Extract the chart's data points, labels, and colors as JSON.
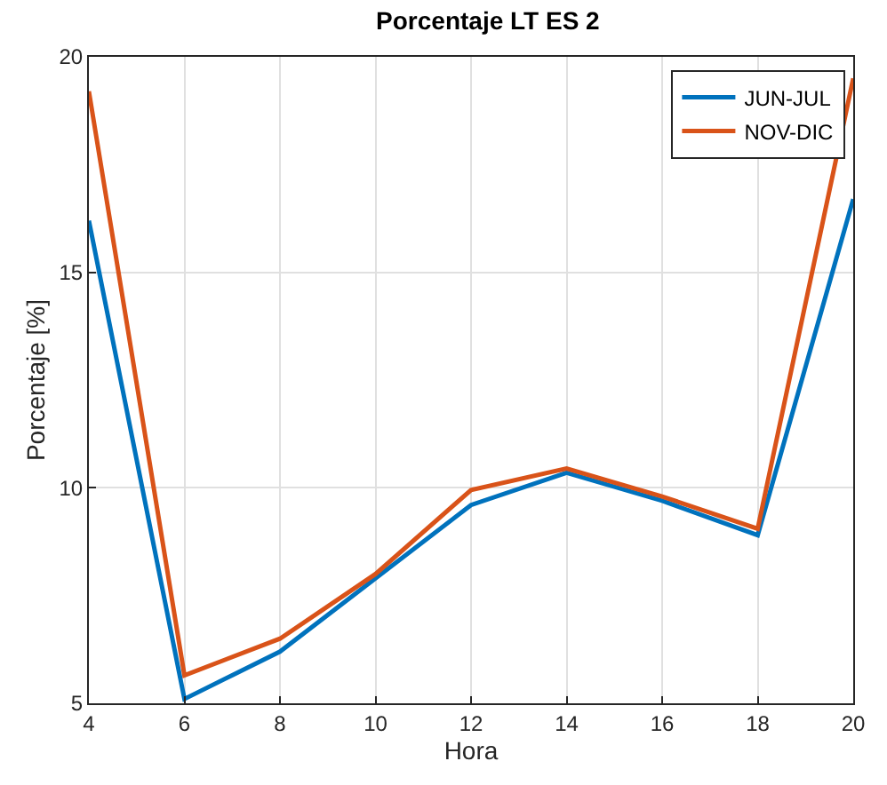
{
  "chart_data": {
    "type": "line",
    "title": "Porcentaje LT ES 2",
    "xlabel": "Hora",
    "ylabel": "Porcentaje [%]",
    "x": [
      4,
      6,
      8,
      10,
      12,
      14,
      16,
      18,
      20
    ],
    "series": [
      {
        "name": "JUN-JUL",
        "color": "#0072bd",
        "values": [
          16.2,
          5.1,
          6.2,
          7.9,
          9.6,
          10.35,
          9.7,
          8.9,
          16.7
        ]
      },
      {
        "name": "NOV-DIC",
        "color": "#d95319",
        "values": [
          19.2,
          5.65,
          6.5,
          8.0,
          9.95,
          10.45,
          9.8,
          9.05,
          19.5
        ]
      }
    ],
    "xlim": [
      4,
      20
    ],
    "xticks": [
      4,
      6,
      8,
      10,
      12,
      14,
      16,
      18,
      20
    ],
    "ylim": [
      5,
      20
    ],
    "yticks": [
      5,
      10,
      15,
      20
    ],
    "grid": true,
    "legend": "top right",
    "marker": "none",
    "line_style": "solid"
  }
}
